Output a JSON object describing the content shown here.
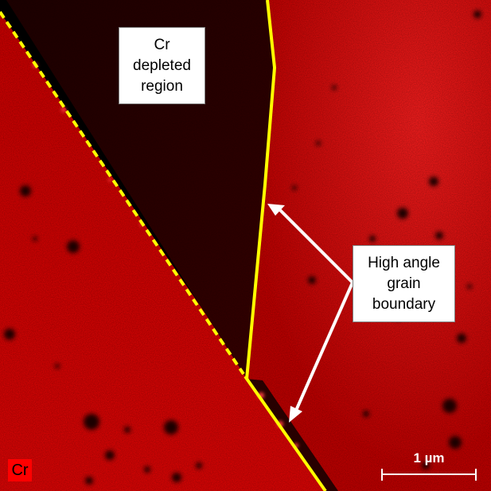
{
  "image": {
    "colors": {
      "grain": "#e00000",
      "grain_bright": "#ff1a1a",
      "depleted": "#2a0000",
      "boundary_line": "#ffff00",
      "arrow": "#ffffff"
    }
  },
  "callouts": {
    "cr_depleted": {
      "lines": [
        "Cr",
        "depleted",
        "region"
      ]
    },
    "grain_boundary": {
      "lines": [
        "High angle",
        "grain",
        "boundary"
      ]
    }
  },
  "element_tag": {
    "label": "Cr",
    "color": "#ff0000"
  },
  "scale_bar": {
    "label": "1 µm",
    "color": "#ffffff"
  }
}
